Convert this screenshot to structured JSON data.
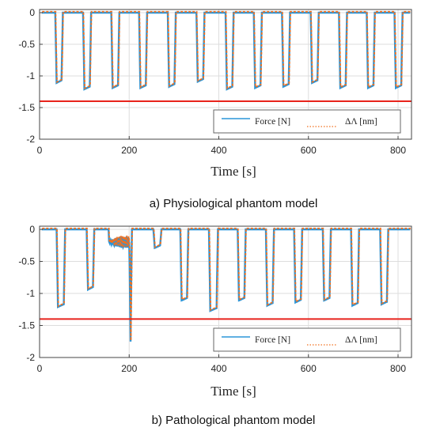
{
  "figure": {
    "panels": [
      {
        "caption": "a) Physiological phantom model",
        "xlabel": "Time [s]",
        "legend": [
          "Force [N]",
          "ΔΛ [nm]"
        ]
      },
      {
        "caption": "b) Pathological phantom model",
        "xlabel": "Time [s]",
        "legend": [
          "Force [N]",
          "ΔΛ [nm]"
        ]
      }
    ]
  },
  "chart_data": [
    {
      "type": "line",
      "title": "",
      "xlabel": "Time [s]",
      "ylabel": "",
      "xlim": [
        0,
        830
      ],
      "ylim": [
        -2,
        0.05
      ],
      "xticks": [
        0,
        200,
        400,
        600,
        800
      ],
      "yticks": [
        0,
        -0.5,
        -1,
        -1.5,
        -2
      ],
      "ytick_labels": [
        "0",
        "-0.5",
        "-1",
        "-1.5",
        "-2"
      ],
      "grid": true,
      "legend_position": "bottom-right",
      "threshold": {
        "y": -1.4,
        "color": "#e8231c"
      },
      "colors": {
        "force": "#2a95d8",
        "lambda": "#f2701f"
      },
      "series": [
        {
          "name": "Force [N]"
        },
        {
          "name": "ΔΛ [nm]"
        }
      ],
      "dips": [
        {
          "start": 35,
          "end": 52,
          "depth": -1.12
        },
        {
          "start": 97,
          "end": 115,
          "depth": -1.22
        },
        {
          "start": 160,
          "end": 178,
          "depth": -1.2
        },
        {
          "start": 222,
          "end": 240,
          "depth": -1.2
        },
        {
          "start": 286,
          "end": 304,
          "depth": -1.18
        },
        {
          "start": 350,
          "end": 368,
          "depth": -1.1
        },
        {
          "start": 415,
          "end": 433,
          "depth": -1.22
        },
        {
          "start": 478,
          "end": 496,
          "depth": -1.2
        },
        {
          "start": 541,
          "end": 559,
          "depth": -1.18
        },
        {
          "start": 605,
          "end": 623,
          "depth": -1.12
        },
        {
          "start": 668,
          "end": 686,
          "depth": -1.2
        },
        {
          "start": 730,
          "end": 748,
          "depth": -1.2
        },
        {
          "start": 792,
          "end": 810,
          "depth": -1.2
        }
      ]
    },
    {
      "type": "line",
      "title": "",
      "xlabel": "Time [s]",
      "ylabel": "",
      "xlim": [
        0,
        830
      ],
      "ylim": [
        -2,
        0.05
      ],
      "xticks": [
        0,
        200,
        400,
        600,
        800
      ],
      "yticks": [
        0,
        -0.5,
        -1,
        -1.5,
        -2
      ],
      "ytick_labels": [
        "0",
        "-0.5",
        "-1",
        "-1.5",
        "-2"
      ],
      "grid": true,
      "legend_position": "bottom-right",
      "threshold": {
        "y": -1.4,
        "color": "#e8231c"
      },
      "colors": {
        "force": "#2a95d8",
        "lambda": "#f2701f"
      },
      "series": [
        {
          "name": "Force [N]"
        },
        {
          "name": "ΔΛ [nm]"
        }
      ],
      "dips": [
        {
          "start": 38,
          "end": 57,
          "depth": -1.22
        },
        {
          "start": 105,
          "end": 122,
          "depth": -0.95
        },
        {
          "start": 200,
          "end": 206,
          "depth": -1.78
        },
        {
          "start": 254,
          "end": 272,
          "depth": -0.3
        },
        {
          "start": 314,
          "end": 332,
          "depth": -1.12
        },
        {
          "start": 378,
          "end": 398,
          "depth": -1.28
        },
        {
          "start": 442,
          "end": 460,
          "depth": -1.12
        },
        {
          "start": 505,
          "end": 523,
          "depth": -1.2
        },
        {
          "start": 568,
          "end": 586,
          "depth": -1.15
        },
        {
          "start": 632,
          "end": 650,
          "depth": -1.12
        },
        {
          "start": 695,
          "end": 713,
          "depth": -1.2
        },
        {
          "start": 760,
          "end": 778,
          "depth": -1.18
        }
      ],
      "noise": {
        "start": 155,
        "end": 200,
        "level": -0.2,
        "amplitude": 0.09
      }
    }
  ]
}
